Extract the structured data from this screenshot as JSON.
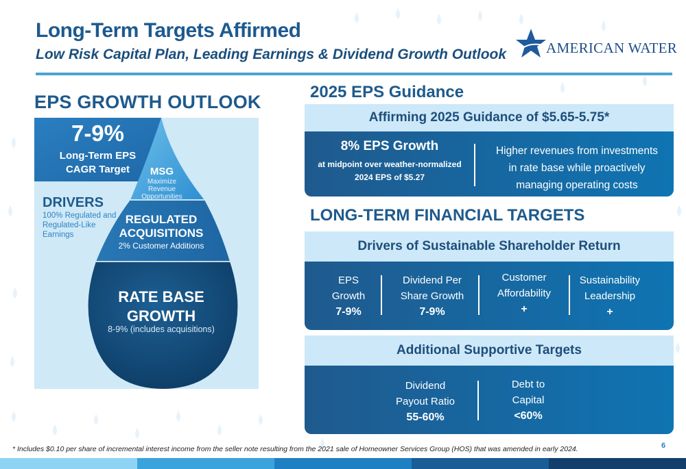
{
  "header": {
    "title": "Long-Term Targets Affirmed",
    "subtitle": "Low Risk Capital Plan, Leading Earnings & Dividend Growth Outlook",
    "logo_text": "AMERICAN WATER"
  },
  "eps_outlook": {
    "heading": "EPS GROWTH OUTLOOK",
    "target_value": "7-9%",
    "target_label_1": "Long-Term EPS",
    "target_label_2": "CAGR Target",
    "msg_title": "MSG",
    "msg_sub_1": "Maximize",
    "msg_sub_2": "Revenue",
    "msg_sub_3": "Opportunities",
    "drivers_title": "DRIVERS",
    "drivers_sub_1": "100% Regulated and",
    "drivers_sub_2": "Regulated-Like",
    "drivers_sub_3": "Earnings",
    "reg_title_1": "REGULATED",
    "reg_title_2": "ACQUISITIONS",
    "reg_sub": "2% Customer Additions",
    "rbg_title_1": "RATE BASE",
    "rbg_title_2": "GROWTH",
    "rbg_sub": "8-9% (includes acquisitions)"
  },
  "guidance": {
    "heading": "2025 EPS Guidance",
    "banner": "Affirming 2025 Guidance of $5.65-5.75*",
    "left_title": "8% EPS Growth",
    "left_sub_1": "at midpoint over weather-normalized",
    "left_sub_2": "2024 EPS of $5.27",
    "right_1": "Higher revenues from investments",
    "right_2": "in rate base while proactively",
    "right_3": "managing operating costs"
  },
  "financial_targets": {
    "heading": "LONG-TERM FINANCIAL TARGETS",
    "banner": "Drivers of Sustainable Shareholder Return",
    "cols": [
      {
        "line1": "EPS",
        "line2": "Growth",
        "value": "7-9%"
      },
      {
        "line1": "Dividend Per",
        "line2": "Share Growth",
        "value": "7-9%"
      },
      {
        "line1": "Customer",
        "line2": "Affordability",
        "value": "+"
      },
      {
        "line1": "Sustainability",
        "line2": "Leadership",
        "value": "+"
      }
    ]
  },
  "supportive": {
    "banner": "Additional Supportive Targets",
    "cols": [
      {
        "line1": "Dividend",
        "line2": "Payout Ratio",
        "value": "55-60%"
      },
      {
        "line1": "Debt to",
        "line2": "Capital",
        "value": "<60%"
      }
    ]
  },
  "footer": {
    "footnote": "* Includes $0.10 per share of incremental interest income from the seller note resulting from the 2021 sale of Homeowner Services Group (HOS) that was amended in early 2024.",
    "page_number": "6"
  },
  "colors": {
    "brand_blue": "#1e5a8c",
    "accent_light": "#cde8f8",
    "drop_dark": "#0e3d66"
  }
}
